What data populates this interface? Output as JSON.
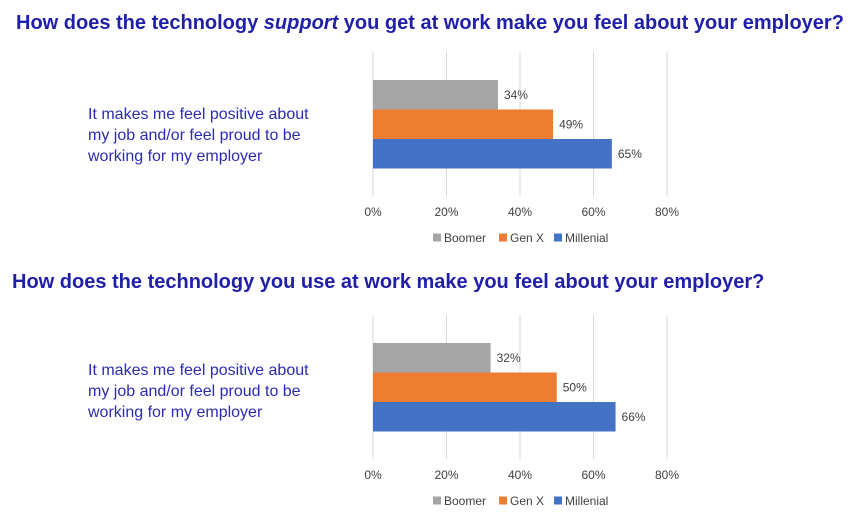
{
  "charts": [
    {
      "title_parts": {
        "before": "How does the technology ",
        "em": "support",
        "after": " you get at work make you feel about your employer?"
      },
      "category_label": "It makes me feel positive about my job and/or feel proud to be working for my employer"
    },
    {
      "title_parts": {
        "before": "How does the technology you use at work make you feel about your employer?",
        "em": "",
        "after": ""
      },
      "category_label": "It makes me feel positive about my job and/or feel proud to be working for my employer"
    }
  ],
  "chart_data": [
    {
      "type": "bar",
      "orientation": "horizontal",
      "title": "How does the technology support you get at work make you feel about your employer?",
      "categories": [
        "It makes me feel positive about my job and/or feel proud to be working for my employer"
      ],
      "series": [
        {
          "name": "Boomer",
          "values": [
            34
          ],
          "color": "#a5a5a5"
        },
        {
          "name": "Gen X",
          "values": [
            49
          ],
          "color": "#ed7d31"
        },
        {
          "name": "Millenial",
          "values": [
            65
          ],
          "color": "#4472c4"
        }
      ],
      "x_ticks": [
        "0%",
        "20%",
        "40%",
        "60%",
        "80%"
      ],
      "xlim": [
        0,
        80
      ],
      "value_suffix": "%",
      "grid": true,
      "legend": "bottom"
    },
    {
      "type": "bar",
      "orientation": "horizontal",
      "title": "How does the technology you use at work make you feel about your employer?",
      "categories": [
        "It makes me feel positive about my job and/or feel proud to be working for my employer"
      ],
      "series": [
        {
          "name": "Boomer",
          "values": [
            32
          ],
          "color": "#a5a5a5"
        },
        {
          "name": "Gen X",
          "values": [
            50
          ],
          "color": "#ed7d31"
        },
        {
          "name": "Millenial",
          "values": [
            66
          ],
          "color": "#4472c4"
        }
      ],
      "x_ticks": [
        "0%",
        "20%",
        "40%",
        "60%",
        "80%"
      ],
      "xlim": [
        0,
        80
      ],
      "value_suffix": "%",
      "grid": true,
      "legend": "bottom"
    }
  ]
}
